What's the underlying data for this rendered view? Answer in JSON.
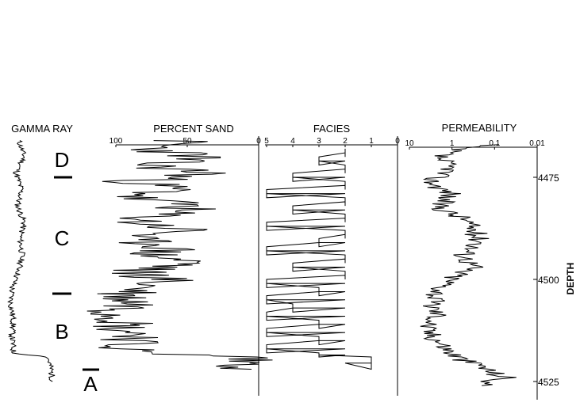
{
  "chart_data": [
    {
      "type": "line",
      "track": "gamma",
      "title": "GAMMA RAY",
      "x_axis": {
        "direction": "left-to-right",
        "ticks": []
      },
      "zones": [
        {
          "label": "D",
          "separator_below": true
        },
        {
          "label": "C"
        },
        {
          "label": "B"
        },
        {
          "label": "A",
          "separator_above": true
        }
      ],
      "depth": [
        4466,
        4470,
        4474,
        4478,
        4482,
        4486,
        4490,
        4494,
        4498,
        4502,
        4506,
        4510,
        4514,
        4518,
        4519,
        4522,
        4525
      ],
      "values": [
        0.22,
        0.3,
        0.18,
        0.26,
        0.2,
        0.3,
        0.24,
        0.27,
        0.22,
        0.12,
        0.1,
        0.14,
        0.12,
        0.14,
        0.65,
        0.7,
        0.72
      ]
    },
    {
      "type": "line",
      "track": "percent_sand",
      "title": "PERCENT SAND",
      "x_axis": {
        "ticks": [
          "100",
          "50",
          "0"
        ],
        "range": [
          100,
          0
        ]
      },
      "depth": [
        4466,
        4468,
        4470,
        4472,
        4474,
        4476,
        4478,
        4480,
        4482,
        4484,
        4486,
        4488,
        4490,
        4492,
        4494,
        4496,
        4498,
        4500,
        4502,
        4504,
        4506,
        4508,
        4510,
        4512,
        4514,
        4516,
        4518,
        4519,
        4520,
        4522
      ],
      "values": [
        55,
        75,
        40,
        80,
        35,
        85,
        60,
        90,
        45,
        70,
        85,
        50,
        95,
        60,
        75,
        45,
        90,
        65,
        80,
        95,
        85,
        98,
        90,
        96,
        80,
        97,
        85,
        5,
        8,
        5
      ]
    },
    {
      "type": "line",
      "track": "facies",
      "title": "FACIES",
      "x_axis": {
        "ticks": [
          "5",
          "4",
          "3",
          "2",
          "1",
          "0"
        ],
        "range": [
          5,
          0
        ]
      },
      "depth": [
        4468,
        4470,
        4472,
        4474,
        4476,
        4478,
        4480,
        4482,
        4484,
        4486,
        4488,
        4490,
        4492,
        4494,
        4496,
        4498,
        4500,
        4502,
        4504,
        4506,
        4508,
        4510,
        4512,
        4514,
        4516,
        4518,
        4519,
        4522
      ],
      "values": [
        2,
        3,
        2,
        4,
        2,
        5,
        2,
        4,
        2,
        5,
        2,
        3,
        5,
        2,
        4,
        2,
        5,
        3,
        5,
        4,
        5,
        3,
        5,
        3,
        5,
        3,
        1,
        1
      ]
    },
    {
      "type": "line",
      "track": "permeability",
      "title": "PERMEABILITY",
      "x_axis": {
        "ticks": [
          "10",
          "1",
          "0.1",
          "0.01"
        ],
        "scale": "log",
        "range": [
          10,
          0.01
        ]
      },
      "depth": [
        4467,
        4470,
        4473,
        4476,
        4479,
        4482,
        4485,
        4488,
        4491,
        4494,
        4497,
        4500,
        4503,
        4506,
        4509,
        4512,
        4515,
        4518,
        4521,
        4524,
        4526
      ],
      "values": [
        0.1,
        2,
        1,
        3,
        1,
        2,
        0.5,
        0.3,
        0.2,
        0.5,
        0.3,
        1,
        2,
        3,
        2,
        4,
        2,
        1,
        0.2,
        0.05,
        0.2
      ]
    }
  ],
  "depth_axis": {
    "label": "DEPTH",
    "ticks": [
      "4475",
      "4500",
      "4525"
    ]
  }
}
